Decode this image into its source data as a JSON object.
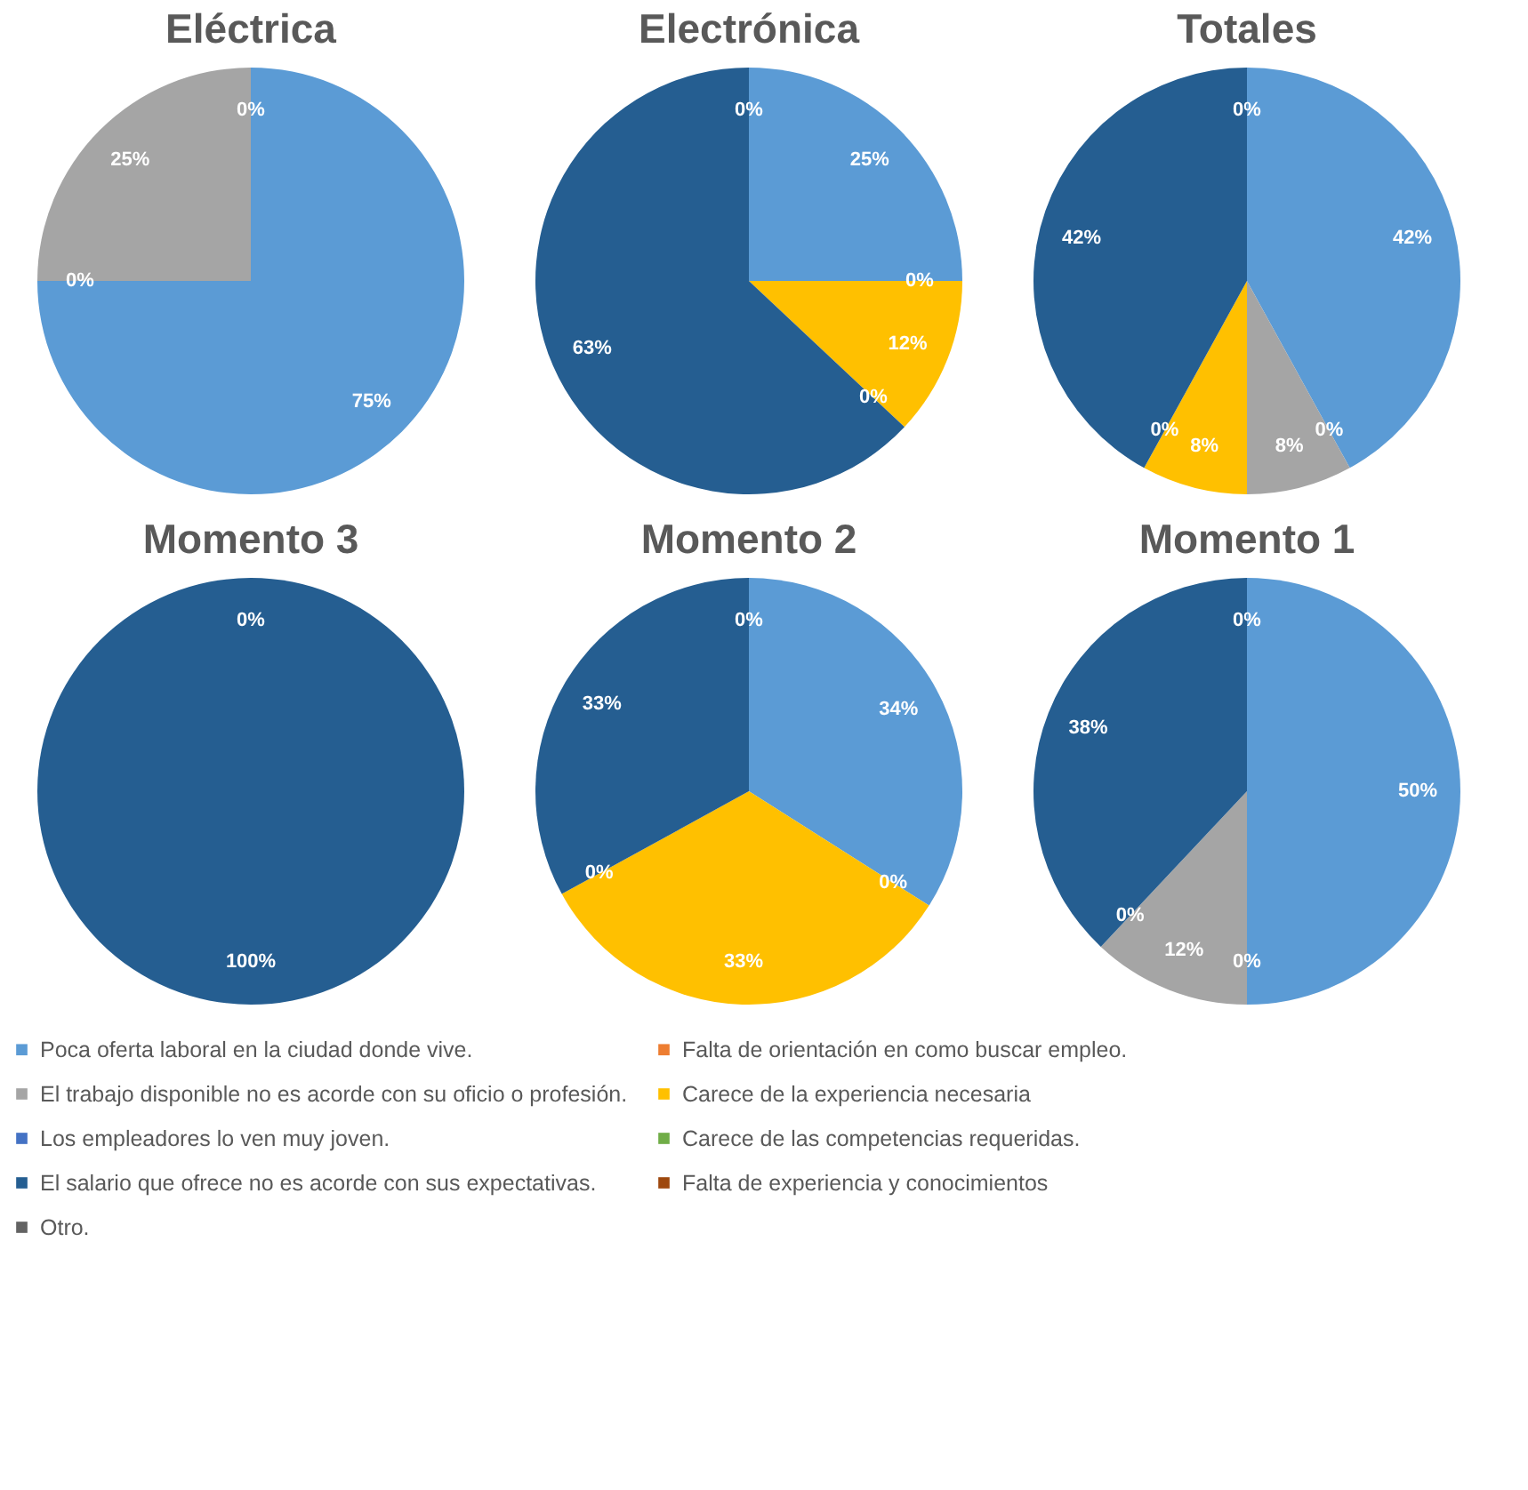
{
  "chart_data": [
    {
      "type": "pie",
      "title": "Eléctrica",
      "categories": [
        "Poca oferta laboral en la ciudad donde vive.",
        "Falta de orientación en como buscar empleo.",
        "El trabajo disponible no es acorde con su oficio o profesión.",
        "Carece de la experiencia necesaria",
        "Los empleadores lo ven muy joven.",
        "Carece de las competencias requeridas.",
        "El salario que ofrece no es acorde con sus expectativas.",
        "Falta de experiencia y conocimientos",
        "Otro."
      ],
      "values": [
        75,
        0,
        25,
        0,
        0,
        0,
        0,
        0,
        0
      ],
      "value_labels": [
        "75%",
        "0%",
        "25%",
        "0%",
        null,
        null,
        null,
        null,
        null
      ],
      "colors": [
        "#5b9bd5",
        "#ed7d31",
        "#a5a5a5",
        "#ffc000",
        "#4472c4",
        "#70ad47",
        "#255e91",
        "#9e480e",
        "#636363"
      ],
      "legend": "bottom"
    },
    {
      "type": "pie",
      "title": "Electrónica",
      "categories": [
        null,
        null,
        null,
        null,
        null,
        null,
        null,
        null,
        null
      ],
      "values": [
        25,
        0,
        0,
        12,
        0,
        0,
        63,
        0,
        0
      ],
      "value_labels": [
        "25%",
        "0%",
        null,
        "12%",
        "0%",
        null,
        "63%",
        "0%",
        null
      ],
      "colors": [
        "#5b9bd5",
        "#ed7d31",
        "#a5a5a5",
        "#ffc000",
        "#4472c4",
        "#70ad47",
        "#255e91",
        "#9e480e",
        "#636363"
      ]
    },
    {
      "type": "pie",
      "title": "Totales",
      "categories": [
        null,
        null,
        null,
        null,
        null,
        null,
        null,
        null,
        null
      ],
      "values": [
        42,
        0,
        8,
        8,
        0,
        0,
        42,
        0,
        0
      ],
      "value_labels": [
        "42%",
        "0%",
        "8%",
        "8%",
        "0%",
        null,
        "42%",
        "0%",
        null
      ],
      "colors": [
        "#5b9bd5",
        "#ed7d31",
        "#a5a5a5",
        "#ffc000",
        "#4472c4",
        "#70ad47",
        "#255e91",
        "#9e480e",
        "#636363"
      ]
    },
    {
      "type": "pie",
      "title": "Momento 3",
      "categories": [
        null,
        null,
        null,
        null,
        null,
        null,
        null,
        null,
        null
      ],
      "values": [
        0,
        0,
        0,
        0,
        0,
        0,
        100,
        0,
        0
      ],
      "value_labels": [
        "0%",
        null,
        null,
        null,
        null,
        null,
        "100%",
        null,
        null
      ],
      "colors": [
        "#5b9bd5",
        "#ed7d31",
        "#a5a5a5",
        "#ffc000",
        "#4472c4",
        "#70ad47",
        "#255e91",
        "#9e480e",
        "#636363"
      ]
    },
    {
      "type": "pie",
      "title": "Momento 2",
      "categories": [
        null,
        null,
        null,
        null,
        null,
        null,
        null,
        null,
        null
      ],
      "values": [
        34,
        0,
        0,
        33,
        0,
        0,
        33,
        0,
        0
      ],
      "value_labels": [
        "34%",
        "0%",
        null,
        "33%",
        "0%",
        null,
        "33%",
        "0%",
        null
      ],
      "colors": [
        "#5b9bd5",
        "#ed7d31",
        "#a5a5a5",
        "#ffc000",
        "#4472c4",
        "#70ad47",
        "#255e91",
        "#9e480e",
        "#636363"
      ]
    },
    {
      "type": "pie",
      "title": "Momento 1",
      "categories": [
        null,
        null,
        null,
        null,
        null,
        null,
        null,
        null,
        null
      ],
      "values": [
        50,
        0,
        12,
        0,
        0,
        0,
        38,
        0,
        0
      ],
      "value_labels": [
        "50%",
        "0%",
        "12%",
        "0%",
        null,
        null,
        "38%",
        "0%",
        null
      ],
      "colors": [
        "#5b9bd5",
        "#ed7d31",
        "#a5a5a5",
        "#ffc000",
        "#4472c4",
        "#70ad47",
        "#255e91",
        "#9e480e",
        "#636363"
      ]
    }
  ]
}
